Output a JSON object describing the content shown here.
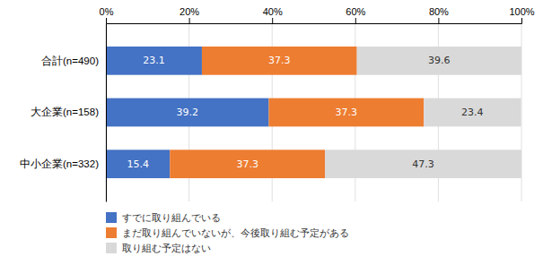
{
  "chart_data": {
    "type": "bar",
    "orientation": "horizontal",
    "stacked": true,
    "categories": [
      "合計(n=490)",
      "大企業(n=158)",
      "中小企業(n=332)"
    ],
    "series": [
      {
        "name": "すでに取り組んでいる",
        "values": [
          23.1,
          39.2,
          15.4
        ],
        "color": "#4472C4"
      },
      {
        "name": "まだ取り組んでいないが、今後取り組む予定がある",
        "values": [
          37.3,
          37.3,
          37.3
        ],
        "color": "#ED7D31"
      },
      {
        "name": "取り組む予定はない",
        "values": [
          39.6,
          23.4,
          47.3
        ],
        "color": "#D9D9D9"
      }
    ],
    "xlim": [
      0,
      100
    ],
    "xticks": [
      {
        "value": 0,
        "label": "0%"
      },
      {
        "value": 20,
        "label": "20%"
      },
      {
        "value": 40,
        "label": "40%"
      },
      {
        "value": 60,
        "label": "60%"
      },
      {
        "value": 80,
        "label": "80%"
      },
      {
        "value": 100,
        "label": "100%"
      }
    ],
    "grid": true,
    "data_labels": true,
    "legend": "bottom"
  }
}
